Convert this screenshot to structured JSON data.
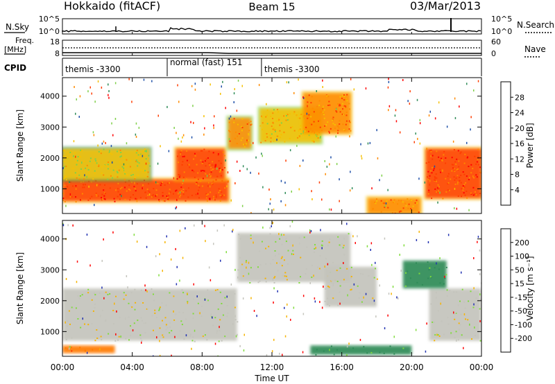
{
  "header": {
    "station": "Hokkaido (fitACF)",
    "beam": "Beam 15",
    "date": "03/Mar/2013"
  },
  "top_panels": {
    "nsky_label": "N.Sky",
    "nsearch_label": "N.Search",
    "freq_label_line1": "Freq.",
    "freq_label_line2": "[MHz]",
    "nave_label": "Nave",
    "cpid_label": "CPID",
    "nsky_ticks": [
      "10^5",
      "10^0"
    ],
    "nsearch_ticks": [
      "10^5",
      "10^0"
    ],
    "freq_ticks": [
      "18",
      "8"
    ],
    "nave_ticks": [
      "60",
      "0"
    ]
  },
  "cpid_segments": [
    {
      "label": "themis -3300",
      "start_h": 0,
      "end_h": 6
    },
    {
      "label": "normal (fast) 151",
      "start_h": 6,
      "end_h": 11.4
    },
    {
      "label": "themis -3300",
      "start_h": 11.4,
      "end_h": 24
    }
  ],
  "power_colorbar": {
    "label": "Power [dB]",
    "ticks": [
      "28",
      "24",
      "20",
      "16",
      "12",
      "8",
      "4"
    ],
    "colors": [
      "#0000ff",
      "#1e4fa8",
      "#2e8b57",
      "#7fd04a",
      "#f6c000",
      "#ff8a00",
      "#ff3c00",
      "#ff0000"
    ]
  },
  "velocity_colorbar": {
    "label": "Velocity [m s⁻¹]",
    "ticks": [
      "200",
      "100",
      "50",
      "15",
      "-15",
      "-50",
      "-100",
      "-200"
    ],
    "colors": [
      "#1f2fb0",
      "#1f5fa0",
      "#2e8b57",
      "#7fdc3a",
      "#c4c4bc",
      "#f6b400",
      "#ff7a00",
      "#ff3000",
      "#ff0000"
    ]
  },
  "axes": {
    "ylabel": "Slant Range [km]",
    "yticks": [
      "4000",
      "3000",
      "2000",
      "1000"
    ],
    "xlabel": "Time UT",
    "xticks": [
      "00:00",
      "04:00",
      "08:00",
      "12:00",
      "16:00",
      "20:00",
      "00:00"
    ]
  },
  "chart_data": [
    {
      "type": "heatmap",
      "title": "",
      "xlabel": "Time UT",
      "ylabel": "Slant Range [km]",
      "xlim": [
        0,
        24
      ],
      "ylim": [
        200,
        4600
      ],
      "colorbar": "Power [dB]",
      "regions": [
        {
          "t0": 0.0,
          "t1": 9.5,
          "r0": 600,
          "r1": 1300,
          "power_db": 28
        },
        {
          "t0": 0.0,
          "t1": 5.0,
          "r0": 1300,
          "r1": 2300,
          "power_db": 20
        },
        {
          "t0": 6.5,
          "t1": 9.3,
          "r0": 1300,
          "r1": 2300,
          "power_db": 28
        },
        {
          "t0": 9.5,
          "t1": 10.8,
          "r0": 2300,
          "r1": 3300,
          "power_db": 24
        },
        {
          "t0": 11.3,
          "t1": 14.8,
          "r0": 2500,
          "r1": 3600,
          "power_db": 22
        },
        {
          "t0": 13.8,
          "t1": 16.5,
          "r0": 2800,
          "r1": 4100,
          "power_db": 26
        },
        {
          "t0": 17.5,
          "t1": 20.5,
          "r0": 200,
          "r1": 700,
          "power_db": 26
        },
        {
          "t0": 20.8,
          "t1": 24.0,
          "r0": 700,
          "r1": 2300,
          "power_db": 28
        }
      ]
    },
    {
      "type": "heatmap",
      "title": "",
      "xlabel": "Time UT",
      "ylabel": "Slant Range [km]",
      "xlim": [
        0,
        24
      ],
      "ylim": [
        200,
        4600
      ],
      "colorbar": "Velocity [m s⁻¹]",
      "regions": [
        {
          "t0": 0.0,
          "t1": 10.0,
          "r0": 700,
          "r1": 2400,
          "velocity_ms": 0
        },
        {
          "t0": 10.0,
          "t1": 16.5,
          "r0": 2600,
          "r1": 4200,
          "velocity_ms": 0
        },
        {
          "t0": 15.0,
          "t1": 18.0,
          "r0": 1800,
          "r1": 3100,
          "velocity_ms": 0
        },
        {
          "t0": 14.2,
          "t1": 20.0,
          "r0": 250,
          "r1": 550,
          "velocity_ms": 60
        },
        {
          "t0": 21.0,
          "t1": 24.0,
          "r0": 700,
          "r1": 2400,
          "velocity_ms": 0
        },
        {
          "t0": 19.5,
          "t1": 22.0,
          "r0": 2400,
          "r1": 3300,
          "velocity_ms": 60
        },
        {
          "t0": 0.0,
          "t1": 3.0,
          "r0": 300,
          "r1": 550,
          "velocity_ms": -80
        }
      ]
    }
  ]
}
